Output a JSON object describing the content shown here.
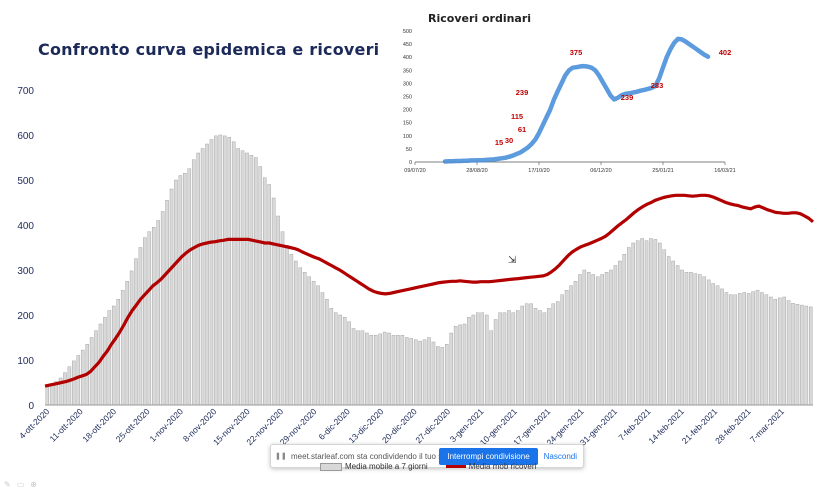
{
  "title": "Confronto curva epidemica e ricoveri",
  "chart_data": [
    {
      "type": "bar+line",
      "title": "Confronto curva epidemica e ricoveri",
      "ylim": [
        0,
        700
      ],
      "yticks": [
        0,
        100,
        200,
        300,
        400,
        500,
        600,
        700
      ],
      "xticks": [
        "4-ott-2020",
        "11-ott-2020",
        "18-ott-2020",
        "25-ott-2020",
        "1-nov-2020",
        "8-nov-2020",
        "15-nov-2020",
        "22-nov-2020",
        "29-nov-2020",
        "6-dic-2020",
        "13-dic-2020",
        "20-dic-2020",
        "27-dic-2020",
        "3-gen-2021",
        "10-gen-2021",
        "17-gen-2021",
        "24-gen-2021",
        "31-gen-2021",
        "7-feb-2021",
        "14-feb-2021",
        "21-feb-2021",
        "28-feb-2021",
        "7-mar-2021"
      ],
      "series": [
        {
          "name": "Media mobile a 7 giorni",
          "kind": "bar",
          "values": [
            40,
            45,
            52,
            60,
            72,
            85,
            98,
            110,
            122,
            135,
            150,
            165,
            180,
            195,
            210,
            220,
            235,
            255,
            275,
            298,
            325,
            350,
            372,
            385,
            395,
            410,
            430,
            455,
            480,
            500,
            510,
            515,
            525,
            545,
            560,
            570,
            580,
            590,
            598,
            600,
            598,
            595,
            585,
            570,
            565,
            560,
            555,
            550,
            530,
            505,
            490,
            460,
            420,
            385,
            355,
            335,
            320,
            305,
            295,
            285,
            275,
            265,
            250,
            235,
            215,
            205,
            200,
            195,
            185,
            170,
            165,
            165,
            160,
            155,
            155,
            158,
            162,
            160,
            155,
            155,
            155,
            150,
            148,
            145,
            142,
            145,
            150,
            140,
            130,
            128,
            135,
            160,
            175,
            178,
            180,
            195,
            200,
            205,
            205,
            200,
            165,
            190,
            205,
            205,
            210,
            205,
            210,
            220,
            225,
            225,
            215,
            210,
            205,
            215,
            225,
            230,
            245,
            255,
            265,
            275,
            290,
            300,
            295,
            290,
            285,
            290,
            295,
            300,
            310,
            320,
            335,
            350,
            360,
            365,
            370,
            365,
            370,
            368,
            360,
            345,
            330,
            320,
            310,
            300,
            295,
            295,
            292,
            290,
            285,
            278,
            270,
            265,
            258,
            250,
            245,
            245,
            248,
            250,
            248,
            252,
            255,
            250,
            245,
            240,
            235,
            238,
            240,
            232,
            226,
            224,
            222,
            220,
            218
          ]
        },
        {
          "name": "Media mob ricoveri",
          "kind": "line",
          "values": [
            42,
            44,
            46,
            48,
            50,
            52,
            55,
            58,
            62,
            65,
            68,
            75,
            85,
            95,
            108,
            120,
            135,
            148,
            162,
            178,
            195,
            210,
            222,
            235,
            245,
            255,
            265,
            272,
            280,
            290,
            300,
            310,
            320,
            330,
            338,
            345,
            350,
            355,
            358,
            360,
            362,
            363,
            365,
            366,
            368,
            368,
            368,
            368,
            368,
            368,
            366,
            364,
            362,
            360,
            360,
            358,
            356,
            354,
            352,
            350,
            348,
            345,
            340,
            336,
            332,
            328,
            325,
            320,
            315,
            310,
            305,
            300,
            294,
            288,
            282,
            276,
            270,
            264,
            258,
            253,
            250,
            248,
            247,
            248,
            250,
            252,
            254,
            256,
            258,
            260,
            262,
            264,
            266,
            268,
            270,
            272,
            273,
            274,
            275,
            275,
            276,
            275,
            274,
            273,
            273,
            274,
            274,
            274,
            275,
            276,
            277,
            278,
            279,
            280,
            281,
            282,
            283,
            284,
            285,
            286,
            287,
            290,
            296,
            303,
            312,
            322,
            332,
            340,
            346,
            351,
            355,
            358,
            362,
            366,
            370,
            375,
            382,
            390,
            398,
            405,
            412,
            420,
            428,
            435,
            441,
            446,
            450,
            455,
            458,
            461,
            463,
            465,
            466,
            466,
            466,
            465,
            464,
            465,
            466,
            466,
            465,
            462,
            458,
            454,
            450,
            447,
            445,
            443,
            440,
            438,
            436,
            440,
            442,
            438,
            434,
            431,
            428,
            427,
            426,
            426,
            427,
            427,
            425,
            420,
            415,
            407
          ]
        }
      ]
    },
    {
      "type": "line",
      "title": "Ricoveri ordinari",
      "ylim": [
        0,
        500
      ],
      "yticks": [
        0,
        50,
        100,
        150,
        200,
        250,
        300,
        350,
        400,
        450,
        500
      ],
      "xticks": [
        "09/07/20",
        "28/08/20",
        "17/10/20",
        "06/12/20",
        "25/01/21",
        "16/03/21"
      ],
      "annotations": [
        "15",
        "30",
        "61",
        "115",
        "239",
        "375",
        "239",
        "283",
        "402"
      ],
      "series": [
        {
          "name": "",
          "values": [
            2,
            3,
            3,
            4,
            4,
            5,
            5,
            6,
            6,
            7,
            7,
            8,
            9,
            10,
            12,
            14,
            16,
            20,
            24,
            30,
            36,
            45,
            55,
            68,
            85,
            110,
            140,
            170,
            200,
            239,
            270,
            300,
            330,
            350,
            360,
            362,
            365,
            366,
            364,
            360,
            350,
            330,
            305,
            280,
            255,
            239,
            245,
            255,
            260,
            262,
            265,
            268,
            272,
            275,
            279,
            283,
            290,
            320,
            360,
            400,
            430,
            455,
            470,
            468,
            460,
            450,
            440,
            430,
            420,
            410,
            402
          ]
        }
      ]
    }
  ],
  "legend": {
    "bar_label": "Media mobile a 7 giorni",
    "line_label": "Media mob ricoveri"
  },
  "share_bar": {
    "message": "meet.starleaf.com sta condividendo il tuo schermo.",
    "stop_label": "Interrompi condivisione",
    "hide_label": "Nascondi"
  },
  "colors": {
    "bar_fill": "#d9d9d9",
    "bar_stroke": "#9a9a9a",
    "line": "#b20000",
    "inset_line": "#4a90d9",
    "title": "#1c2a59",
    "annotation": "#c00000",
    "button": "#1a73e8"
  }
}
